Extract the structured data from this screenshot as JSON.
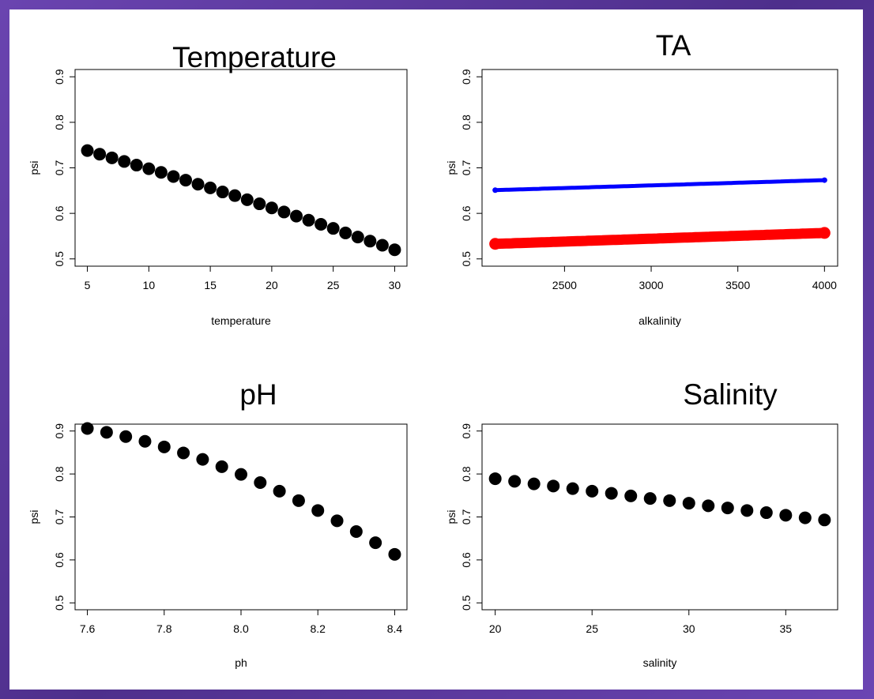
{
  "chart_data": [
    {
      "type": "scatter",
      "title": "Temperature",
      "xlabel": "temperature",
      "ylabel": "psi",
      "xlim": [
        5,
        30
      ],
      "ylim": [
        0.5,
        0.9
      ],
      "xticks": [
        "5",
        "10",
        "15",
        "20",
        "25",
        "30"
      ],
      "yticks": [
        "0.5",
        "0.6",
        "0.7",
        "0.8",
        "0.9"
      ],
      "series": [
        {
          "color": "#000000",
          "x": [
            5,
            6,
            7,
            8,
            9,
            10,
            11,
            12,
            13,
            14,
            15,
            16,
            17,
            18,
            19,
            20,
            21,
            22,
            23,
            24,
            25,
            26,
            27,
            28,
            29,
            30
          ],
          "y": [
            0.738,
            0.73,
            0.722,
            0.714,
            0.706,
            0.698,
            0.69,
            0.681,
            0.673,
            0.664,
            0.656,
            0.647,
            0.639,
            0.63,
            0.621,
            0.612,
            0.603,
            0.594,
            0.585,
            0.576,
            0.567,
            0.557,
            0.548,
            0.539,
            0.53,
            0.52
          ]
        }
      ]
    },
    {
      "type": "line",
      "title": "TA",
      "xlabel": "alkalinity",
      "ylabel": "psi",
      "xlim": [
        2100,
        4000
      ],
      "ylim": [
        0.5,
        0.9
      ],
      "xticks": [
        "2500",
        "3000",
        "3500",
        "4000"
      ],
      "yticks": [
        "0.5",
        "0.6",
        "0.7",
        "0.8",
        "0.9"
      ],
      "series": [
        {
          "color": "#0000ff",
          "x": [
            2100,
            4000
          ],
          "y": [
            0.651,
            0.673
          ]
        },
        {
          "color": "#ff0000",
          "x": [
            2100,
            4000
          ],
          "y": [
            0.533,
            0.557
          ]
        }
      ]
    },
    {
      "type": "scatter",
      "title": "pH",
      "xlabel": "ph",
      "ylabel": "psi",
      "xlim": [
        7.6,
        8.4
      ],
      "ylim": [
        0.5,
        0.9
      ],
      "xticks": [
        "7.6",
        "7.8",
        "8.0",
        "8.2",
        "8.4"
      ],
      "yticks": [
        "0.5",
        "0.6",
        "0.7",
        "0.8",
        "0.9"
      ],
      "series": [
        {
          "color": "#000000",
          "x": [
            7.6,
            7.65,
            7.7,
            7.75,
            7.8,
            7.85,
            7.9,
            7.95,
            8.0,
            8.05,
            8.1,
            8.15,
            8.2,
            8.25,
            8.3,
            8.35,
            8.4
          ],
          "y": [
            0.906,
            0.897,
            0.887,
            0.876,
            0.863,
            0.849,
            0.834,
            0.817,
            0.799,
            0.78,
            0.76,
            0.738,
            0.715,
            0.691,
            0.666,
            0.64,
            0.613
          ]
        }
      ]
    },
    {
      "type": "scatter",
      "title": "Salinity",
      "xlabel": "salinity",
      "ylabel": "psi",
      "xlim": [
        20,
        37
      ],
      "ylim": [
        0.5,
        0.9
      ],
      "xticks": [
        "20",
        "25",
        "30",
        "35"
      ],
      "yticks": [
        "0.5",
        "0.6",
        "0.7",
        "0.8",
        "0.9"
      ],
      "series": [
        {
          "color": "#000000",
          "x": [
            20,
            21,
            22,
            23,
            24,
            25,
            26,
            27,
            28,
            29,
            30,
            31,
            32,
            33,
            34,
            35,
            36,
            37
          ],
          "y": [
            0.789,
            0.783,
            0.777,
            0.772,
            0.766,
            0.76,
            0.755,
            0.749,
            0.743,
            0.738,
            0.732,
            0.726,
            0.721,
            0.715,
            0.71,
            0.704,
            0.698,
            0.693
          ]
        }
      ]
    }
  ]
}
